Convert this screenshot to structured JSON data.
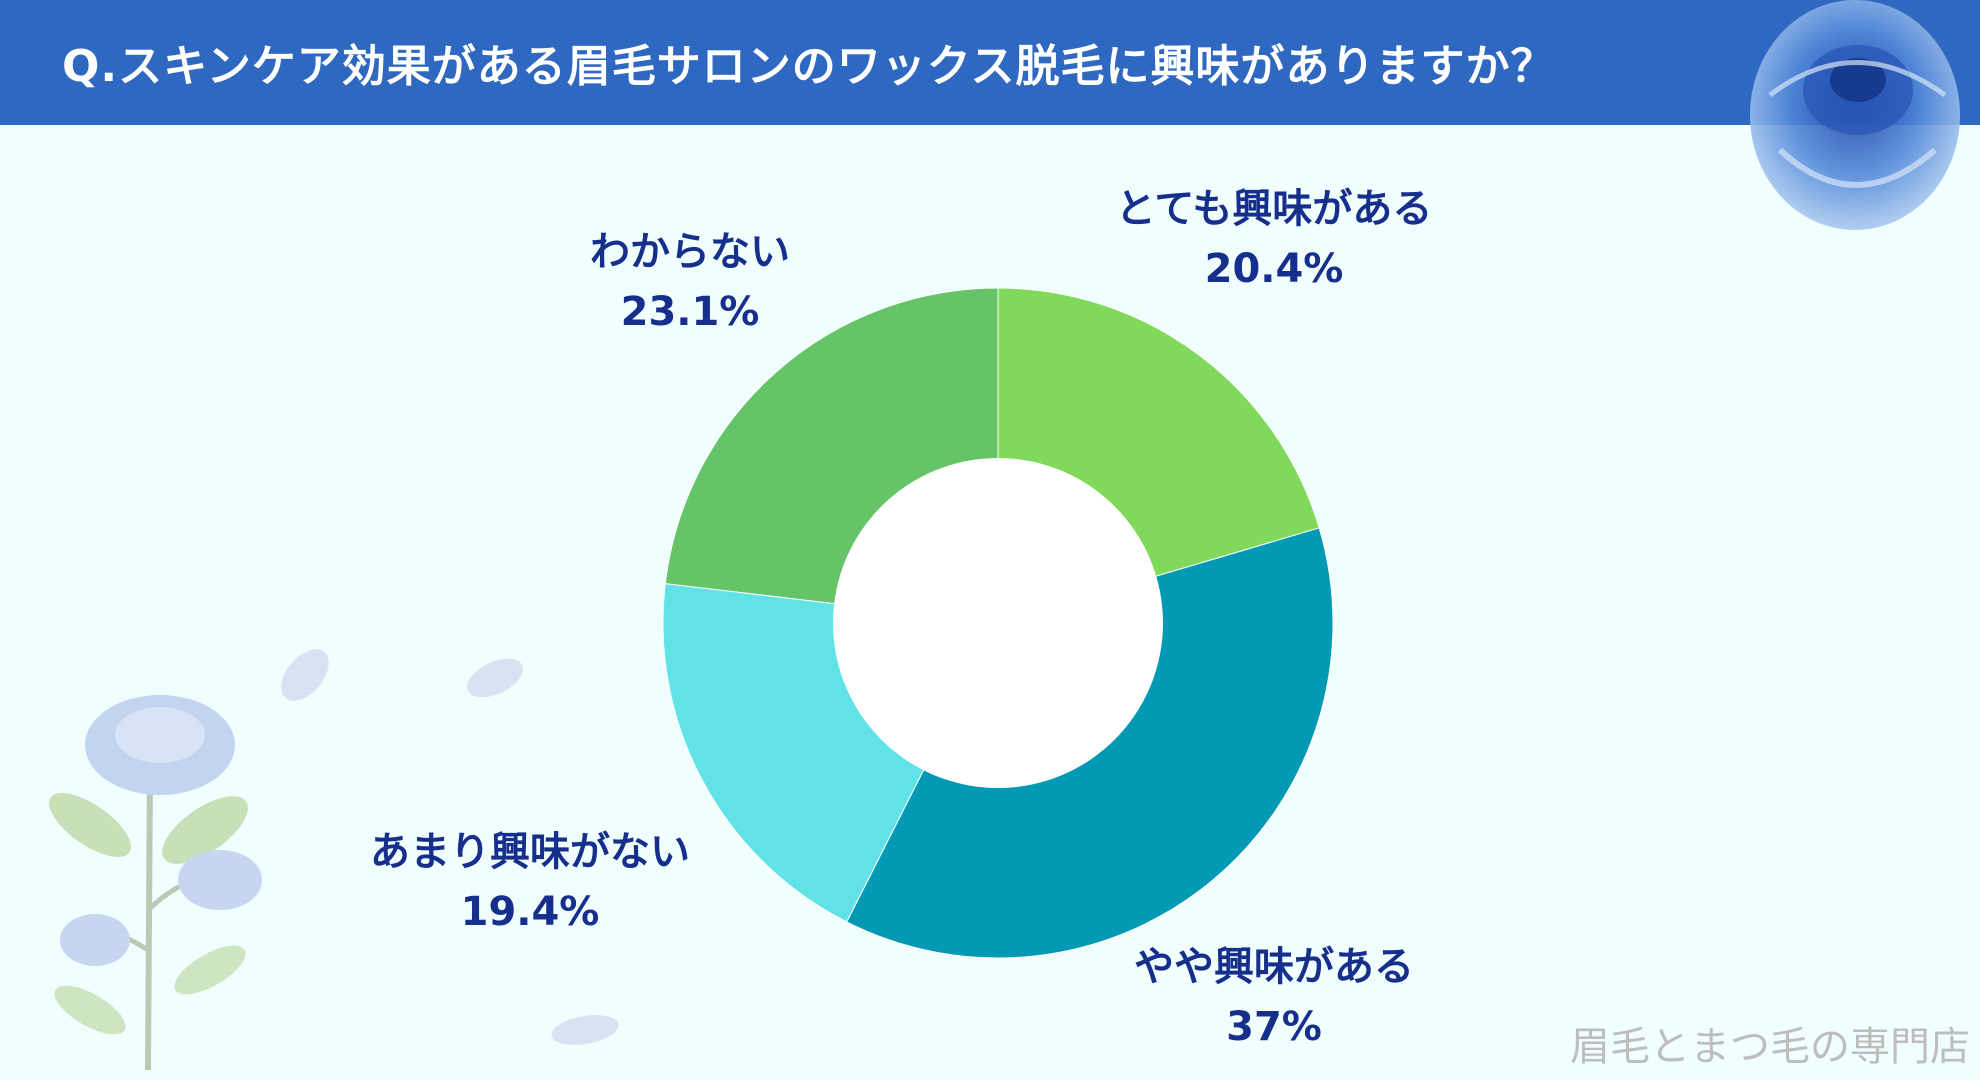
{
  "header": {
    "title": "Q.スキンケア効果がある眉毛サロンのワックス脱毛に興味がありますか？"
  },
  "watermark": "眉毛とまつ毛の専門店",
  "colors": {
    "header_bg": "#2f68c0",
    "background": "#f0fefe",
    "label_text": "#172f8c"
  },
  "chart_data": {
    "type": "pie",
    "donut": true,
    "title": "",
    "start": "12 o'clock",
    "direction": "clockwise",
    "slices": [
      {
        "label": "とても興味がある",
        "value": 20.4,
        "value_label": "20.4%",
        "color": "#80d95a"
      },
      {
        "label": "やや興味がある",
        "value": 37,
        "value_label": "37%",
        "color": "#0199b3"
      },
      {
        "label": "あまり興味がない",
        "value": 19.4,
        "value_label": "19.4%",
        "color": "#60e2e6"
      },
      {
        "label": "わからない",
        "value": 23.1,
        "value_label": "23.1%",
        "color": "#65c368"
      }
    ]
  }
}
